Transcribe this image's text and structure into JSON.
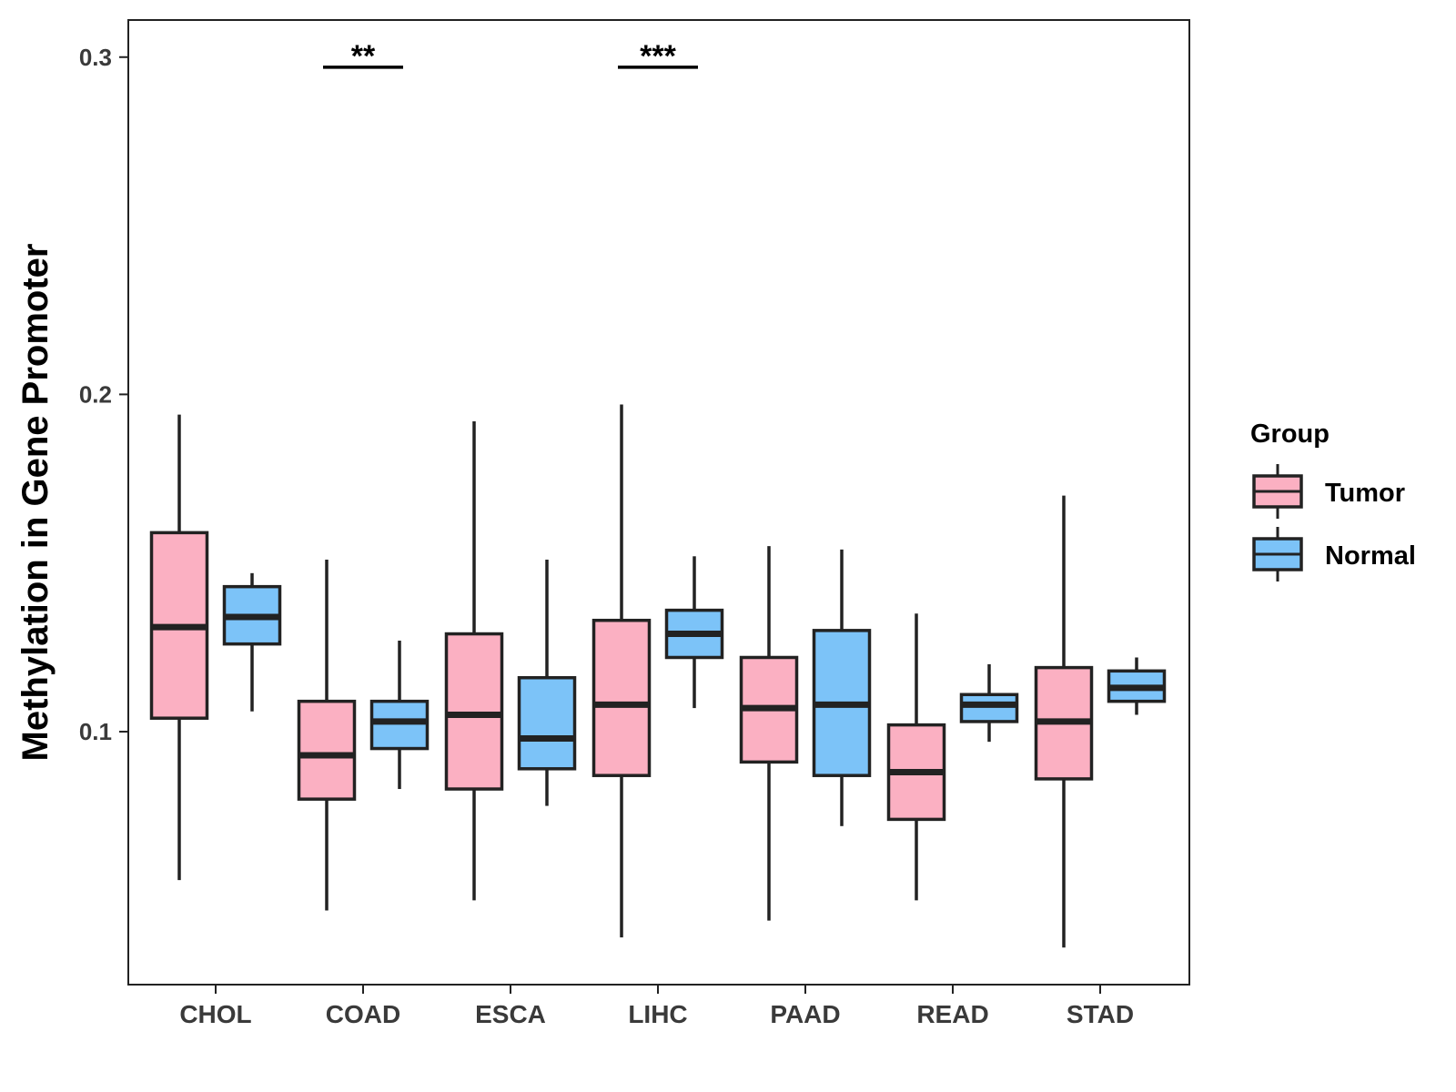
{
  "chart_data": {
    "type": "boxplot",
    "title": "",
    "xlabel": "",
    "ylabel": "Methylation in Gene Promoter",
    "ylim": [
      0.025,
      0.311
    ],
    "yticks": [
      "0.1",
      "0.2",
      "0.3"
    ],
    "ytick_values": [
      0.1,
      0.2,
      0.3
    ],
    "categories": [
      "CHOL",
      "COAD",
      "ESCA",
      "LIHC",
      "PAAD",
      "READ",
      "STAD"
    ],
    "legend": {
      "title": "Group",
      "position": "right",
      "items": [
        {
          "name": "Tumor",
          "color": "#fbb0c2"
        },
        {
          "name": "Normal",
          "color": "#7cc3f8"
        }
      ]
    },
    "series": [
      {
        "name": "Tumor",
        "color": "#fbb0c2",
        "boxes": [
          {
            "min": 0.056,
            "q1": 0.104,
            "median": 0.131,
            "q3": 0.159,
            "max": 0.194
          },
          {
            "min": 0.047,
            "q1": 0.08,
            "median": 0.093,
            "q3": 0.109,
            "max": 0.151
          },
          {
            "min": 0.05,
            "q1": 0.083,
            "median": 0.105,
            "q3": 0.129,
            "max": 0.192
          },
          {
            "min": 0.039,
            "q1": 0.087,
            "median": 0.108,
            "q3": 0.133,
            "max": 0.197
          },
          {
            "min": 0.044,
            "q1": 0.091,
            "median": 0.107,
            "q3": 0.122,
            "max": 0.155
          },
          {
            "min": 0.05,
            "q1": 0.074,
            "median": 0.088,
            "q3": 0.102,
            "max": 0.135
          },
          {
            "min": 0.036,
            "q1": 0.086,
            "median": 0.103,
            "q3": 0.119,
            "max": 0.17
          }
        ]
      },
      {
        "name": "Normal",
        "color": "#7cc3f8",
        "boxes": [
          {
            "min": 0.106,
            "q1": 0.126,
            "median": 0.134,
            "q3": 0.143,
            "max": 0.147
          },
          {
            "min": 0.083,
            "q1": 0.095,
            "median": 0.103,
            "q3": 0.109,
            "max": 0.127
          },
          {
            "min": 0.078,
            "q1": 0.089,
            "median": 0.098,
            "q3": 0.116,
            "max": 0.151
          },
          {
            "min": 0.107,
            "q1": 0.122,
            "median": 0.129,
            "q3": 0.136,
            "max": 0.152
          },
          {
            "min": 0.072,
            "q1": 0.087,
            "median": 0.108,
            "q3": 0.13,
            "max": 0.154
          },
          {
            "min": 0.097,
            "q1": 0.103,
            "median": 0.108,
            "q3": 0.111,
            "max": 0.12
          },
          {
            "min": 0.105,
            "q1": 0.109,
            "median": 0.113,
            "q3": 0.118,
            "max": 0.122
          }
        ]
      }
    ],
    "annotations": [
      {
        "category": "COAD",
        "label": "**",
        "y": 0.297
      },
      {
        "category": "LIHC",
        "label": "***",
        "y": 0.297
      }
    ]
  }
}
